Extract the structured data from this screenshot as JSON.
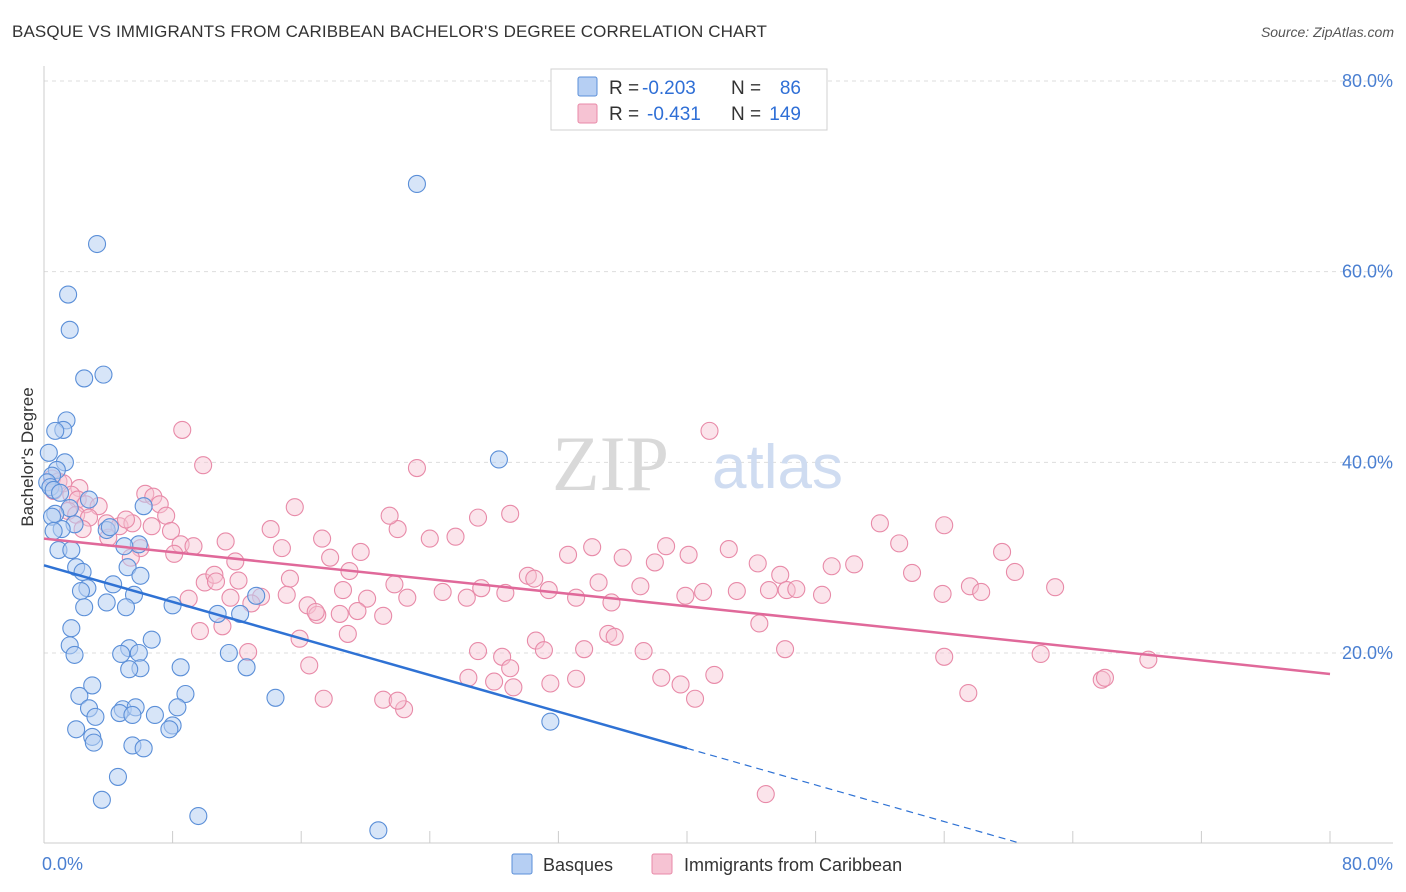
{
  "header": {
    "title": "BASQUE VS IMMIGRANTS FROM CARIBBEAN BACHELOR'S DEGREE CORRELATION CHART",
    "source": "Source: ZipAtlas.com"
  },
  "watermark": {
    "zip": "ZIP",
    "atlas": "atlas"
  },
  "legend": {
    "r_label": "R =",
    "n_label": "N =",
    "rows": [
      {
        "r": "-0.203",
        "n": "86"
      },
      {
        "r": "-0.431",
        "n": "149"
      }
    ]
  },
  "bottom_legend": {
    "basques": "Basques",
    "caribbean": "Immigrants from Caribbean"
  },
  "axis_text": {
    "ylabel": "Bachelor's Degree",
    "x_min": "0.0%",
    "x_max": "80.0%",
    "y_ticks": [
      "80.0%",
      "60.0%",
      "40.0%",
      "20.0%"
    ]
  },
  "colors": {
    "basques_fill": "#b6cff3",
    "basques_stroke": "#5b8fd8",
    "basques_line": "#2f72d4",
    "caribbean_fill": "#f6c3d3",
    "caribbean_stroke": "#e88aa8",
    "caribbean_line": "#e0699a",
    "grid": "#dddddd"
  },
  "chart_data": {
    "type": "scatter",
    "title": "BASQUE VS IMMIGRANTS FROM CARIBBEAN BACHELOR'S DEGREE CORRELATION CHART",
    "xlabel": "",
    "ylabel": "Bachelor's Degree",
    "xlim": [
      0,
      80
    ],
    "ylim": [
      0,
      82
    ],
    "y_ticks": [
      20,
      40,
      60,
      80
    ],
    "grid": true,
    "legend_position": "top-center",
    "series": [
      {
        "name": "Basques",
        "R": -0.203,
        "N": 86,
        "trend": {
          "x0": 0,
          "y0": 29.2,
          "x1": 40,
          "y1": 10.0,
          "dashed_to_x": 60.5
        },
        "points": [
          [
            23.2,
            69.2
          ],
          [
            3.3,
            62.9
          ],
          [
            1.5,
            57.6
          ],
          [
            1.6,
            53.9
          ],
          [
            3.7,
            49.2
          ],
          [
            2.5,
            48.8
          ],
          [
            1.4,
            44.4
          ],
          [
            1.2,
            43.4
          ],
          [
            0.7,
            43.3
          ],
          [
            28.3,
            40.3
          ],
          [
            0.3,
            41.0
          ],
          [
            1.3,
            40.0
          ],
          [
            0.8,
            39.2
          ],
          [
            0.5,
            38.6
          ],
          [
            0.2,
            37.9
          ],
          [
            0.4,
            37.4
          ],
          [
            0.6,
            37.1
          ],
          [
            1.0,
            36.8
          ],
          [
            2.8,
            36.1
          ],
          [
            6.2,
            35.4
          ],
          [
            1.6,
            35.2
          ],
          [
            0.7,
            34.6
          ],
          [
            0.5,
            34.3
          ],
          [
            1.9,
            33.5
          ],
          [
            1.1,
            33.0
          ],
          [
            0.6,
            32.8
          ],
          [
            3.9,
            32.9
          ],
          [
            4.1,
            33.2
          ],
          [
            5.9,
            31.4
          ],
          [
            5.0,
            31.2
          ],
          [
            0.9,
            30.8
          ],
          [
            1.7,
            30.8
          ],
          [
            2.0,
            29.0
          ],
          [
            2.4,
            28.5
          ],
          [
            5.2,
            29.0
          ],
          [
            6.0,
            28.1
          ],
          [
            4.3,
            27.2
          ],
          [
            2.7,
            26.8
          ],
          [
            2.3,
            26.5
          ],
          [
            5.6,
            26.1
          ],
          [
            13.2,
            26.0
          ],
          [
            5.1,
            24.8
          ],
          [
            2.5,
            24.8
          ],
          [
            8.0,
            25.0
          ],
          [
            10.8,
            24.1
          ],
          [
            1.7,
            22.6
          ],
          [
            6.7,
            21.4
          ],
          [
            1.6,
            20.8
          ],
          [
            5.3,
            20.5
          ],
          [
            5.9,
            20.0
          ],
          [
            4.8,
            19.9
          ],
          [
            11.5,
            20.0
          ],
          [
            1.9,
            19.8
          ],
          [
            6.0,
            18.4
          ],
          [
            8.5,
            18.5
          ],
          [
            5.3,
            18.3
          ],
          [
            12.6,
            18.5
          ],
          [
            3.0,
            16.6
          ],
          [
            2.2,
            15.5
          ],
          [
            8.8,
            15.7
          ],
          [
            14.4,
            15.3
          ],
          [
            2.8,
            14.2
          ],
          [
            4.9,
            14.1
          ],
          [
            5.7,
            14.3
          ],
          [
            8.3,
            14.3
          ],
          [
            4.7,
            13.7
          ],
          [
            5.5,
            13.5
          ],
          [
            6.9,
            13.5
          ],
          [
            3.2,
            13.3
          ],
          [
            8.0,
            12.4
          ],
          [
            7.8,
            12.0
          ],
          [
            2.0,
            12.0
          ],
          [
            3.0,
            11.2
          ],
          [
            3.1,
            10.6
          ],
          [
            5.5,
            10.3
          ],
          [
            6.2,
            10.0
          ],
          [
            4.6,
            7.0
          ],
          [
            3.6,
            4.6
          ],
          [
            9.6,
            2.9
          ],
          [
            20.8,
            1.4
          ],
          [
            31.5,
            12.8
          ],
          [
            12.2,
            24.1
          ],
          [
            3.9,
            25.3
          ]
        ]
      },
      {
        "name": "Immigrants from Caribbean",
        "R": -0.431,
        "N": 149,
        "trend": {
          "x0": 0,
          "y0": 32.0,
          "x1": 80,
          "y1": 17.8
        },
        "points": [
          [
            0.5,
            38.3
          ],
          [
            0.9,
            38.0
          ],
          [
            1.2,
            37.8
          ],
          [
            2.2,
            37.3
          ],
          [
            0.6,
            37.0
          ],
          [
            1.7,
            36.6
          ],
          [
            2.1,
            36.1
          ],
          [
            2.6,
            35.6
          ],
          [
            3.4,
            35.4
          ],
          [
            1.5,
            34.9
          ],
          [
            2.0,
            34.5
          ],
          [
            2.8,
            34.2
          ],
          [
            3.9,
            33.6
          ],
          [
            2.4,
            33.0
          ],
          [
            4.7,
            33.3
          ],
          [
            5.5,
            33.6
          ],
          [
            6.3,
            36.7
          ],
          [
            6.8,
            36.4
          ],
          [
            7.2,
            35.6
          ],
          [
            7.6,
            34.4
          ],
          [
            5.1,
            34.0
          ],
          [
            6.7,
            33.3
          ],
          [
            7.9,
            32.8
          ],
          [
            4.0,
            32.1
          ],
          [
            8.5,
            31.4
          ],
          [
            6.0,
            31.0
          ],
          [
            9.3,
            31.2
          ],
          [
            8.1,
            30.4
          ],
          [
            5.4,
            30.0
          ],
          [
            8.6,
            43.4
          ],
          [
            9.9,
            39.7
          ],
          [
            11.3,
            31.7
          ],
          [
            14.1,
            33.0
          ],
          [
            14.8,
            31.0
          ],
          [
            15.6,
            35.3
          ],
          [
            17.3,
            32.0
          ],
          [
            17.8,
            30.0
          ],
          [
            19.7,
            30.6
          ],
          [
            19.0,
            28.6
          ],
          [
            22.0,
            33.0
          ],
          [
            24.0,
            32.0
          ],
          [
            21.5,
            34.4
          ],
          [
            23.2,
            39.4
          ],
          [
            25.6,
            32.2
          ],
          [
            27.0,
            34.2
          ],
          [
            29.0,
            34.6
          ],
          [
            30.1,
            28.1
          ],
          [
            32.6,
            30.3
          ],
          [
            34.1,
            31.1
          ],
          [
            36.0,
            30.0
          ],
          [
            38.0,
            29.5
          ],
          [
            38.7,
            31.2
          ],
          [
            40.1,
            30.3
          ],
          [
            41.4,
            43.3
          ],
          [
            42.6,
            30.9
          ],
          [
            44.4,
            29.4
          ],
          [
            45.8,
            28.2
          ],
          [
            46.2,
            26.6
          ],
          [
            49.0,
            29.1
          ],
          [
            50.4,
            29.3
          ],
          [
            52.0,
            33.6
          ],
          [
            53.2,
            31.5
          ],
          [
            54.0,
            28.4
          ],
          [
            55.9,
            26.2
          ],
          [
            56.0,
            33.4
          ],
          [
            57.6,
            27.0
          ],
          [
            58.3,
            26.4
          ],
          [
            59.6,
            30.6
          ],
          [
            60.4,
            28.5
          ],
          [
            62.9,
            26.9
          ],
          [
            10.0,
            27.4
          ],
          [
            10.6,
            28.2
          ],
          [
            11.9,
            29.6
          ],
          [
            12.1,
            27.6
          ],
          [
            13.5,
            25.9
          ],
          [
            15.3,
            27.8
          ],
          [
            16.4,
            25.0
          ],
          [
            17.0,
            24.0
          ],
          [
            18.6,
            26.6
          ],
          [
            20.1,
            25.7
          ],
          [
            21.8,
            27.2
          ],
          [
            22.6,
            25.8
          ],
          [
            24.8,
            26.4
          ],
          [
            26.3,
            25.8
          ],
          [
            27.2,
            26.8
          ],
          [
            28.7,
            26.3
          ],
          [
            30.5,
            27.8
          ],
          [
            31.4,
            26.6
          ],
          [
            33.1,
            25.8
          ],
          [
            34.5,
            27.4
          ],
          [
            35.3,
            25.3
          ],
          [
            37.1,
            27.0
          ],
          [
            39.9,
            26.0
          ],
          [
            41.0,
            26.4
          ],
          [
            43.1,
            26.5
          ],
          [
            45.1,
            26.6
          ],
          [
            46.8,
            26.7
          ],
          [
            48.4,
            26.1
          ],
          [
            9.0,
            25.7
          ],
          [
            11.6,
            25.8
          ],
          [
            12.9,
            25.2
          ],
          [
            15.1,
            26.1
          ],
          [
            16.9,
            24.3
          ],
          [
            18.4,
            24.1
          ],
          [
            19.5,
            24.4
          ],
          [
            21.1,
            23.9
          ],
          [
            9.7,
            22.3
          ],
          [
            11.1,
            22.8
          ],
          [
            12.7,
            20.1
          ],
          [
            15.9,
            21.5
          ],
          [
            16.5,
            18.7
          ],
          [
            18.9,
            22.0
          ],
          [
            27.0,
            20.2
          ],
          [
            28.5,
            19.6
          ],
          [
            30.6,
            21.3
          ],
          [
            31.1,
            20.3
          ],
          [
            33.6,
            20.4
          ],
          [
            35.1,
            22.0
          ],
          [
            35.5,
            21.7
          ],
          [
            37.3,
            20.2
          ],
          [
            26.4,
            17.4
          ],
          [
            29.0,
            18.4
          ],
          [
            31.5,
            16.8
          ],
          [
            33.1,
            17.3
          ],
          [
            29.2,
            16.4
          ],
          [
            28.0,
            17.0
          ],
          [
            38.4,
            17.4
          ],
          [
            39.6,
            16.7
          ],
          [
            40.5,
            15.2
          ],
          [
            41.7,
            17.7
          ],
          [
            44.5,
            23.1
          ],
          [
            46.1,
            20.4
          ],
          [
            56.0,
            19.6
          ],
          [
            57.5,
            15.8
          ],
          [
            62.0,
            19.9
          ],
          [
            65.8,
            17.2
          ],
          [
            66.0,
            17.4
          ],
          [
            68.7,
            19.3
          ],
          [
            44.9,
            5.2
          ],
          [
            22.4,
            14.1
          ],
          [
            21.1,
            15.1
          ],
          [
            22.0,
            15.0
          ],
          [
            17.4,
            15.2
          ],
          [
            10.7,
            27.5
          ]
        ]
      }
    ]
  }
}
